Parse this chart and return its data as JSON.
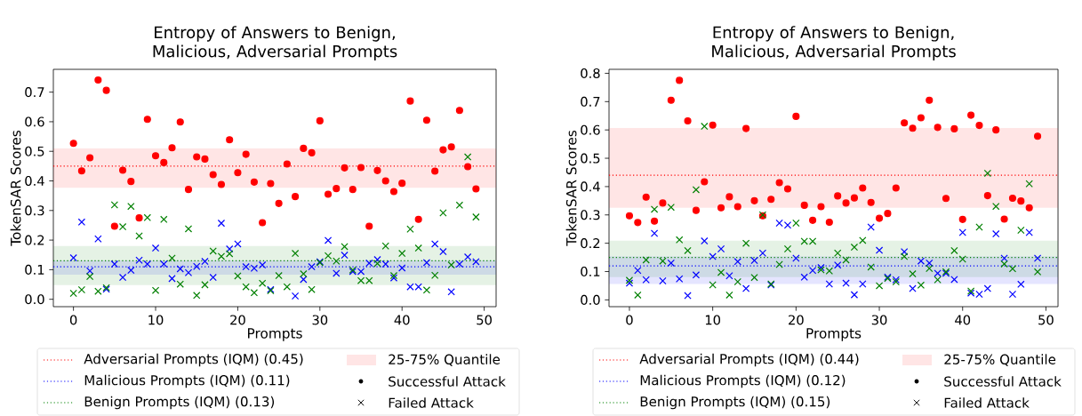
{
  "chart_data": [
    {
      "type": "scatter",
      "title": "Entropy of Answers to Benign, Malicious, Adversarial Prompts",
      "xlabel": "Prompts",
      "ylabel": "TokenSAR Scores",
      "x": [
        0,
        1,
        2,
        3,
        4,
        5,
        6,
        7,
        8,
        9,
        10,
        11,
        12,
        13,
        14,
        15,
        16,
        17,
        18,
        19,
        20,
        21,
        22,
        23,
        24,
        25,
        26,
        27,
        28,
        29,
        30,
        31,
        32,
        33,
        34,
        35,
        36,
        37,
        38,
        39,
        40,
        41,
        42,
        43,
        44,
        45,
        46,
        47,
        48,
        49
      ],
      "xlim": [
        -2.45,
        51.45
      ],
      "ylim": [
        -0.025,
        0.777
      ],
      "xticks": [
        0,
        10,
        20,
        30,
        40,
        50
      ],
      "yticks": [
        {
          "value": 0,
          "label": "0.0"
        },
        0.1,
        0.2,
        0.3,
        0.4,
        0.5,
        0.6,
        0.7
      ],
      "series": [
        {
          "color": "#ff0000",
          "marker": "circle",
          "values": [
            0.527,
            0.434,
            0.478,
            0.741,
            0.706,
            0.247,
            0.436,
            0.398,
            0.275,
            0.608,
            0.485,
            0.462,
            0.512,
            0.599,
            0.371,
            0.481,
            0.474,
            0.421,
            0.388,
            0.539,
            0.428,
            0.49,
            0.396,
            0.259,
            0.391,
            0.324,
            0.457,
            0.347,
            0.51,
            0.495,
            0.603,
            0.355,
            0.374,
            0.444,
            0.371,
            0.445,
            0.247,
            0.435,
            0.4,
            0.364,
            0.392,
            0.67,
            0.27,
            0.605,
            0.433,
            0.505,
            0.515,
            0.638,
            0.448,
            0.373
          ]
        },
        {
          "color": "#0000ff",
          "marker": "cross",
          "values": [
            0.14,
            0.261,
            0.096,
            0.204,
            0.034,
            0.119,
            0.074,
            0.098,
            0.132,
            0.119,
            0.173,
            0.119,
            0.07,
            0.103,
            0.09,
            0.111,
            0.128,
            0.074,
            0.257,
            0.17,
            0.187,
            0.11,
            0.105,
            0.116,
            0.033,
            null,
            null,
            0.011,
            0.067,
            0.11,
            0.127,
            0.199,
            0.088,
            0.149,
            0.094,
            0.094,
            0.122,
            0.134,
            0.119,
            0.072,
            0.106,
            0.042,
            0.042,
            0.124,
            0.187,
            0.161,
            0.025,
            0.119,
            0.143,
            0.127
          ]
        },
        {
          "color": "#008000",
          "marker": "cross",
          "values": [
            0.02,
            0.032,
            0.077,
            0.027,
            0.039,
            0.319,
            0.245,
            0.314,
            0.214,
            0.276,
            0.03,
            0.27,
            0.139,
            0.051,
            0.238,
            0.013,
            0.049,
            0.163,
            0.145,
            0.154,
            0.079,
            0.042,
            0.022,
            0.054,
            0.029,
            0.08,
            0.042,
            0.155,
            0.086,
            0.033,
            0.124,
            0.147,
            0.129,
            0.178,
            0.099,
            0.063,
            0.063,
            0.121,
            0.18,
            0.08,
            0.155,
            0.237,
            0.173,
            0.031,
            0.081,
            0.292,
            0.116,
            0.318,
            0.481,
            0.278
          ]
        }
      ],
      "ref_lines": [
        {
          "axis": "y",
          "value": 0.45,
          "label": "Adversarial Prompts (IQM) (0.45)",
          "color": "#ff0000",
          "line_style": "dotted"
        },
        {
          "axis": "y",
          "value": 0.11,
          "label": "Malicious Prompts (IQM) (0.11)",
          "color": "#0000ff",
          "line_style": "dotted"
        },
        {
          "axis": "y",
          "value": 0.13,
          "label": "Benign Prompts (IQM) (0.13)",
          "color": "#008000",
          "line_style": "dotted"
        }
      ],
      "bands": [
        {
          "axis": "y",
          "from": 0.377,
          "to": 0.51,
          "label": "25-75% Quantile",
          "color": "#ff0000"
        },
        {
          "axis": "y",
          "from": 0.083,
          "to": 0.131,
          "color": "#0000ff"
        },
        {
          "axis": "y",
          "from": 0.048,
          "to": 0.18,
          "color": "#008000"
        }
      ],
      "annotations": [
        "Successful Attack",
        "Failed Attack"
      ],
      "legend": "bottom"
    },
    {
      "type": "scatter",
      "title": "Entropy of Answers to Benign, Malicious, Adversarial Prompts",
      "xlabel": "Prompts",
      "ylabel": "TokenSAR Scores",
      "x": [
        0,
        1,
        2,
        3,
        4,
        5,
        6,
        7,
        8,
        9,
        10,
        11,
        12,
        13,
        14,
        15,
        16,
        17,
        18,
        19,
        20,
        21,
        22,
        23,
        24,
        25,
        26,
        27,
        28,
        29,
        30,
        31,
        32,
        33,
        34,
        35,
        36,
        37,
        38,
        39,
        40,
        41,
        42,
        43,
        44,
        45,
        46,
        47,
        48,
        49
      ],
      "xlim": [
        -2.45,
        51.45
      ],
      "ylim": [
        -0.024,
        0.814
      ],
      "xticks": [
        0,
        10,
        20,
        30,
        40,
        50
      ],
      "yticks": [
        {
          "value": 0,
          "label": "0.0"
        },
        0.1,
        0.2,
        0.3,
        0.4,
        0.5,
        0.6,
        0.7,
        0.8
      ],
      "series": [
        {
          "color": "#ff0000",
          "marker": "circle",
          "values": [
            0.297,
            0.273,
            0.363,
            0.278,
            0.342,
            0.705,
            0.775,
            0.632,
            0.316,
            0.417,
            0.617,
            0.325,
            0.364,
            0.329,
            0.605,
            0.35,
            0.297,
            0.355,
            0.414,
            0.392,
            0.648,
            0.334,
            0.281,
            0.329,
            0.274,
            0.367,
            0.342,
            0.36,
            0.395,
            0.344,
            0.288,
            0.305,
            0.395,
            0.625,
            0.606,
            0.643,
            0.705,
            0.609,
            0.358,
            0.604,
            0.284,
            0.652,
            0.616,
            0.368,
            0.6,
            0.285,
            0.359,
            0.349,
            0.325,
            0.578
          ]
        },
        {
          "color": "#0000ff",
          "marker": "cross",
          "values": [
            0.059,
            0.104,
            0.071,
            0.235,
            0.067,
            0.13,
            0.074,
            0.015,
            0.088,
            0.208,
            0.153,
            0.18,
            0.085,
            0.135,
            0.04,
            0.139,
            0.165,
            0.053,
            0.271,
            0.264,
            0.147,
            0.08,
            0.104,
            0.114,
            0.056,
            0.123,
            0.059,
            0.018,
            0.056,
            0.257,
            0.175,
            0.08,
            0.071,
            0.17,
            0.04,
            0.137,
            0.13,
            0.094,
            0.094,
            0.072,
            0.238,
            0.024,
            0.02,
            0.04,
            0.233,
            0.147,
            0.02,
            0.055,
            0.238,
            0.147
          ]
        },
        {
          "color": "#008000",
          "marker": "cross",
          "values": [
            0.069,
            0.017,
            0.141,
            0.32,
            0.137,
            0.327,
            0.212,
            0.174,
            0.389,
            0.613,
            0.053,
            0.097,
            0.017,
            0.064,
            0.2,
            0.079,
            0.3,
            0.056,
            0.125,
            0.18,
            0.271,
            0.207,
            0.207,
            0.106,
            0.102,
            0.165,
            0.141,
            0.186,
            0.21,
            0.116,
            0.05,
            0.076,
            0.064,
            0.153,
            0.092,
            0.052,
            0.111,
            0.071,
            0.099,
            0.174,
            0.144,
            0.031,
            0.257,
            0.447,
            0.33,
            0.127,
            0.11,
            0.246,
            0.41,
            0.099
          ]
        }
      ],
      "ref_lines": [
        {
          "axis": "y",
          "value": 0.44,
          "label": "Adversarial Prompts (IQM) (0.44)",
          "color": "#ff0000",
          "line_style": "dotted"
        },
        {
          "axis": "y",
          "value": 0.12,
          "label": "Malicious Prompts (IQM) (0.12)",
          "color": "#0000ff",
          "line_style": "dotted"
        },
        {
          "axis": "y",
          "value": 0.15,
          "label": "Benign Prompts (IQM) (0.15)",
          "color": "#008000",
          "line_style": "dotted"
        }
      ],
      "bands": [
        {
          "axis": "y",
          "from": 0.325,
          "to": 0.607,
          "label": "25-75% Quantile",
          "color": "#ff0000"
        },
        {
          "axis": "y",
          "from": 0.056,
          "to": 0.153,
          "color": "#0000ff"
        },
        {
          "axis": "y",
          "from": 0.08,
          "to": 0.209,
          "color": "#008000"
        }
      ],
      "annotations": [
        "Successful Attack",
        "Failed Attack"
      ],
      "legend": "bottom"
    }
  ]
}
